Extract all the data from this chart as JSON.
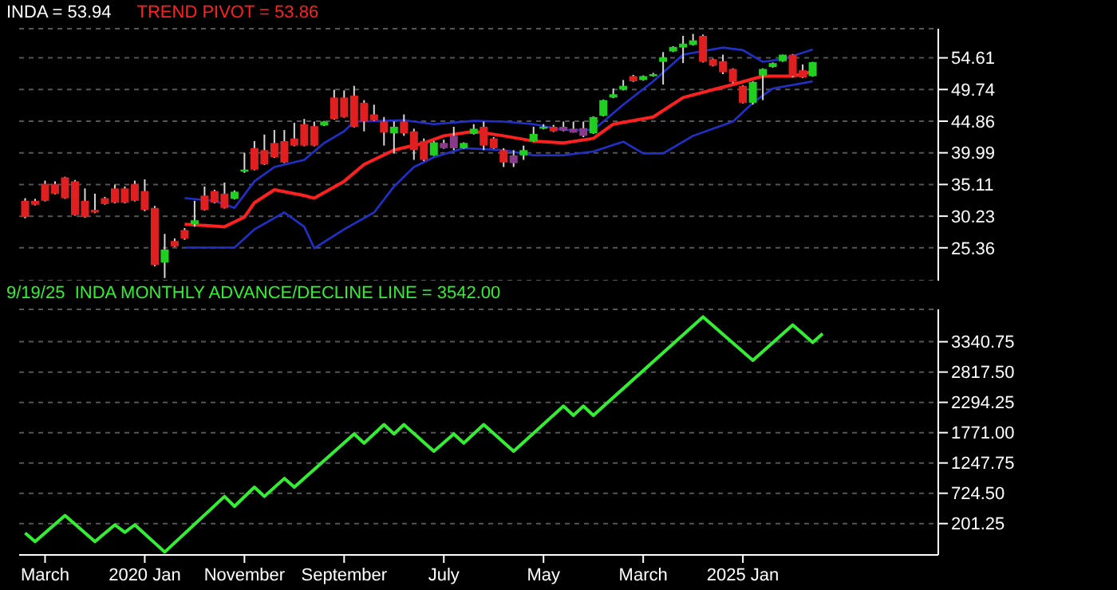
{
  "chart_data": [
    {
      "type": "candlestick",
      "legend": "top left",
      "grid": "y",
      "tick_labels": "y",
      "annotations": [
        "INDA = 53.94"
      ],
      "x": [
        "2019-01",
        "2019-02",
        "2019-03",
        "2019-04",
        "2019-05",
        "2019-06",
        "2019-07",
        "2019-08",
        "2019-09",
        "2019-10",
        "2019-11",
        "2019-12",
        "2020-01",
        "2020-02",
        "2020-03",
        "2020-04",
        "2020-05",
        "2020-06",
        "2020-07",
        "2020-08",
        "2020-09",
        "2020-10",
        "2020-11",
        "2020-12",
        "2021-01",
        "2021-02",
        "2021-03",
        "2021-04",
        "2021-05",
        "2021-06",
        "2021-07",
        "2021-08",
        "2021-09",
        "2021-10",
        "2021-11",
        "2021-12",
        "2022-01",
        "2022-02",
        "2022-03",
        "2022-04",
        "2022-05",
        "2022-06",
        "2022-07",
        "2022-08",
        "2022-09",
        "2022-10",
        "2022-11",
        "2022-12",
        "2023-01",
        "2023-02",
        "2023-03",
        "2023-04",
        "2023-05",
        "2023-06",
        "2023-07",
        "2023-08",
        "2023-09",
        "2023-10",
        "2023-11",
        "2023-12",
        "2024-01",
        "2024-02",
        "2024-03",
        "2024-04",
        "2024-05",
        "2024-06",
        "2024-07",
        "2024-08",
        "2024-09",
        "2024-10",
        "2024-11",
        "2024-12",
        "2025-01",
        "2025-02",
        "2025-03",
        "2025-04",
        "2025-05",
        "2025-06",
        "2025-07",
        "2025-08"
      ],
      "ohlc": [
        [
          32.6,
          33.0,
          29.9,
          30.1
        ],
        [
          32.6,
          32.9,
          31.9,
          32.0
        ],
        [
          35.2,
          35.7,
          32.5,
          32.6
        ],
        [
          35.2,
          35.6,
          33.6,
          33.7
        ],
        [
          36.2,
          36.3,
          32.9,
          33.0
        ],
        [
          35.6,
          35.8,
          30.3,
          30.4
        ],
        [
          32.6,
          34.5,
          30.0,
          30.1
        ],
        [
          31.2,
          33.7,
          30.7,
          30.8
        ],
        [
          33.0,
          33.2,
          32.0,
          32.1
        ],
        [
          34.5,
          35.1,
          32.2,
          32.3
        ],
        [
          34.5,
          34.8,
          32.2,
          32.3
        ],
        [
          35.2,
          35.7,
          32.5,
          32.6
        ],
        [
          34.1,
          35.9,
          31.0,
          31.2
        ],
        [
          31.5,
          31.8,
          22.5,
          22.7
        ],
        [
          23.1,
          27.5,
          20.7,
          25.1
        ],
        [
          26.4,
          26.8,
          25.5,
          25.6
        ],
        [
          28.1,
          28.4,
          26.6,
          26.8
        ],
        [
          29.0,
          32.6,
          28.6,
          29.6
        ],
        [
          33.4,
          34.8,
          31.1,
          31.2
        ],
        [
          34.1,
          34.3,
          32.2,
          32.3
        ],
        [
          33.7,
          35.4,
          31.4,
          31.5
        ],
        [
          32.9,
          34.2,
          32.8,
          34.0
        ],
        [
          37.1,
          40.0,
          36.9,
          37.4
        ],
        [
          40.7,
          41.8,
          37.3,
          37.4
        ],
        [
          40.4,
          42.8,
          38.1,
          38.2
        ],
        [
          41.5,
          43.5,
          39.2,
          39.3
        ],
        [
          41.8,
          43.5,
          38.4,
          38.5
        ],
        [
          42.2,
          44.6,
          41.0,
          41.1
        ],
        [
          44.4,
          45.2,
          41.0,
          41.1
        ],
        [
          44.1,
          44.8,
          41.0,
          41.1
        ],
        [
          44.2,
          44.9,
          44.1,
          44.8
        ],
        [
          48.5,
          49.7,
          45.1,
          45.2
        ],
        [
          48.5,
          49.6,
          45.4,
          45.5
        ],
        [
          48.8,
          50.3,
          43.9,
          44.0
        ],
        [
          47.7,
          48.1,
          43.3,
          44.8
        ],
        [
          45.9,
          47.4,
          44.9,
          45.0
        ],
        [
          44.8,
          45.5,
          41.1,
          43.1
        ],
        [
          43.0,
          44.8,
          39.9,
          44.0
        ],
        [
          44.8,
          45.9,
          42.6,
          43.0
        ],
        [
          43.3,
          43.7,
          38.9,
          40.4
        ],
        [
          41.8,
          42.2,
          38.7,
          38.9
        ],
        [
          39.6,
          41.8,
          39.5,
          41.6
        ],
        [
          41.5,
          42.0,
          40.6,
          40.7
        ],
        [
          42.6,
          44.0,
          40.4,
          40.7
        ],
        [
          40.7,
          41.6,
          40.6,
          41.5
        ],
        [
          42.9,
          44.4,
          42.8,
          43.7
        ],
        [
          44.0,
          44.8,
          40.4,
          41.1
        ],
        [
          42.2,
          42.4,
          40.6,
          40.7
        ],
        [
          40.4,
          40.7,
          37.8,
          38.5
        ],
        [
          39.6,
          40.4,
          37.8,
          38.4
        ],
        [
          39.6,
          41.1,
          38.9,
          40.4
        ],
        [
          41.8,
          44.0,
          41.7,
          42.9
        ],
        [
          43.7,
          44.4,
          43.6,
          44.0
        ],
        [
          44.0,
          44.3,
          43.2,
          43.3
        ],
        [
          44.0,
          44.8,
          43.3,
          43.4
        ],
        [
          43.7,
          44.8,
          43.1,
          43.1
        ],
        [
          43.8,
          44.8,
          42.4,
          42.6
        ],
        [
          43.0,
          45.6,
          42.9,
          45.5
        ],
        [
          45.7,
          48.2,
          45.6,
          48.1
        ],
        [
          48.5,
          49.9,
          48.4,
          49.0
        ],
        [
          49.7,
          51.2,
          49.6,
          50.3
        ],
        [
          51.8,
          52.0,
          50.9,
          51.0
        ],
        [
          51.2,
          51.9,
          51.1,
          51.8
        ],
        [
          51.8,
          52.3,
          51.7,
          52.1
        ],
        [
          54.0,
          55.5,
          50.5,
          54.7
        ],
        [
          55.6,
          56.4,
          55.5,
          56.3
        ],
        [
          56.2,
          58.0,
          53.8,
          56.8
        ],
        [
          56.6,
          58.3,
          56.5,
          57.3
        ],
        [
          58.0,
          58.2,
          53.9,
          54.0
        ],
        [
          54.4,
          54.5,
          53.3,
          53.4
        ],
        [
          54.1,
          55.1,
          52.1,
          52.4
        ],
        [
          52.9,
          53.0,
          50.7,
          50.9
        ],
        [
          50.3,
          50.4,
          47.6,
          47.7
        ],
        [
          47.7,
          51.0,
          47.4,
          50.9
        ],
        [
          51.9,
          53.0,
          48.1,
          52.9
        ],
        [
          53.2,
          53.9,
          53.1,
          53.8
        ],
        [
          54.1,
          55.1,
          54.0,
          55.1
        ],
        [
          55.1,
          55.2,
          51.6,
          51.8
        ],
        [
          52.7,
          53.6,
          51.5,
          51.6
        ],
        [
          51.8,
          54.0,
          51.7,
          53.94
        ]
      ],
      "colors": [
        "#e02020",
        "#e02020",
        "#e02020",
        "#e02020",
        "#e02020",
        "#e02020",
        "#e02020",
        "#e02020",
        "#e02020",
        "#e02020",
        "#e02020",
        "#e02020",
        "#e02020",
        "#e02020",
        "#20d020",
        "#e02020",
        "#e02020",
        "#20d020",
        "#e02020",
        "#e02020",
        "#e02020",
        "#20d020",
        "#20d020",
        "#e02020",
        "#e02020",
        "#e02020",
        "#e02020",
        "#e02020",
        "#e02020",
        "#e02020",
        "#20d020",
        "#e02020",
        "#e02020",
        "#e02020",
        "#e02020",
        "#e02020",
        "#e02020",
        "#20d020",
        "#e02020",
        "#e02020",
        "#e02020",
        "#20d020",
        "#8a3a8a",
        "#8a3a8a",
        "#20d020",
        "#20d020",
        "#e02020",
        "#e02020",
        "#e02020",
        "#8a3a8a",
        "#20d020",
        "#20d020",
        "#20d020",
        "#e02020",
        "#8a3a8a",
        "#8a3a8a",
        "#8a3a8a",
        "#20d020",
        "#20d020",
        "#20d020",
        "#20d020",
        "#e02020",
        "#20d020",
        "#20d020",
        "#20d020",
        "#20d020",
        "#20d020",
        "#20d020",
        "#e02020",
        "#e02020",
        "#e02020",
        "#e02020",
        "#e02020",
        "#20d020",
        "#20d020",
        "#20d020",
        "#20d020",
        "#e02020",
        "#e02020",
        "#20d020"
      ],
      "series": [
        {
          "type": "line",
          "name": "TREND PIVOT = 53.86",
          "color": "#ff2020",
          "x": [
            "2020-05",
            "2020-09",
            "2020-11",
            "2020-12",
            "2021-02",
            "2021-05",
            "2021-06",
            "2021-09",
            "2021-11",
            "2022-02",
            "2022-05",
            "2022-07",
            "2022-10",
            "2023-01",
            "2023-04",
            "2023-07",
            "2023-10",
            "2023-12",
            "2024-04",
            "2024-07",
            "2024-10",
            "2024-12",
            "2025-03",
            "2025-06",
            "2025-08"
          ],
          "values": [
            29.0,
            28.6,
            30.1,
            32.3,
            34.3,
            33.4,
            33.0,
            35.6,
            38.2,
            40.4,
            41.5,
            42.6,
            43.3,
            42.6,
            41.8,
            41.5,
            42.2,
            44.4,
            45.5,
            48.5,
            49.7,
            50.5,
            51.8,
            51.8,
            52.5
          ]
        },
        {
          "type": "line",
          "color": "#2030c8",
          "x": [
            "2020-05",
            "2020-08",
            "2020-10",
            "2020-12",
            "2021-02",
            "2021-05",
            "2021-07",
            "2021-09",
            "2021-10",
            "2022-03",
            "2022-06",
            "2022-10",
            "2023-01",
            "2023-04",
            "2023-07",
            "2023-10",
            "2024-01",
            "2024-04",
            "2024-07",
            "2024-11",
            "2025-01",
            "2025-03",
            "2025-05",
            "2025-08"
          ],
          "values": [
            33.0,
            32.6,
            31.5,
            35.6,
            37.8,
            38.9,
            41.5,
            43.3,
            44.8,
            45.0,
            44.4,
            44.9,
            44.8,
            44.4,
            43.5,
            43.5,
            47.4,
            51.0,
            55.1,
            56.2,
            55.8,
            54.0,
            54.4,
            55.9
          ]
        },
        {
          "type": "line",
          "color": "#2030c8",
          "x": [
            "2020-05",
            "2020-10",
            "2020-12",
            "2021-03",
            "2021-05",
            "2021-06",
            "2021-09",
            "2021-12",
            "2022-02",
            "2022-04",
            "2022-06",
            "2022-09",
            "2023-01",
            "2023-04",
            "2023-07",
            "2023-10",
            "2024-01",
            "2024-03",
            "2024-05",
            "2024-08",
            "2024-12",
            "2025-02",
            "2025-04",
            "2025-08"
          ],
          "values": [
            25.4,
            25.4,
            28.2,
            30.8,
            28.6,
            25.3,
            28.2,
            30.8,
            34.8,
            37.8,
            39.3,
            40.7,
            40.4,
            39.6,
            39.6,
            40.2,
            41.7,
            39.9,
            39.9,
            42.6,
            44.8,
            47.7,
            49.9,
            51.0
          ]
        }
      ],
      "xlim": [
        "2018-12-13",
        "2026-08-19"
      ],
      "ylim": [
        20.3,
        59.1
      ],
      "yticks": [
        25.36,
        30.23,
        35.11,
        39.99,
        44.86,
        49.74,
        54.61
      ]
    },
    {
      "type": "line",
      "legend": "top left",
      "grid": "y",
      "series": [
        {
          "name": "9/19/25  INDA MONTHLY ADVANCE/DECLINE LINE = 3542.00",
          "color": "#33ee33",
          "x": [
            "2019-01",
            "2019-02",
            "2019-05",
            "2019-08",
            "2019-10",
            "2019-11",
            "2019-12",
            "2020-03",
            "2020-09",
            "2020-10",
            "2020-12",
            "2021-01",
            "2021-03",
            "2021-04",
            "2021-10",
            "2021-11",
            "2022-01",
            "2022-02",
            "2022-03",
            "2022-06",
            "2022-08",
            "2022-09",
            "2022-11",
            "2023-02",
            "2023-07",
            "2023-08",
            "2023-09",
            "2023-10",
            "2024-09",
            "2025-02",
            "2025-06",
            "2025-08",
            "2025-09"
          ],
          "values": [
            40,
            -110,
            340,
            -110,
            180,
            50,
            180,
            -290,
            670,
            500,
            830,
            670,
            980,
            830,
            1750,
            1590,
            1910,
            1750,
            1910,
            1450,
            1750,
            1590,
            1910,
            1450,
            2230,
            2070,
            2230,
            2070,
            3770,
            3020,
            3630,
            3330,
            3480
          ]
        }
      ],
      "xlim": [
        "2018-12-13",
        "2026-08-19"
      ],
      "xticks": [
        {
          "value": "2019-03",
          "label": "March"
        },
        {
          "value": "2020-01",
          "label": "2020 Jan"
        },
        {
          "value": "2020-11",
          "label": "November"
        },
        {
          "value": "2021-09",
          "label": "September"
        },
        {
          "value": "2022-07",
          "label": "July"
        },
        {
          "value": "2023-05",
          "label": "May"
        },
        {
          "value": "2024-03",
          "label": "March"
        },
        {
          "value": "2025-01",
          "label": "2025 Jan"
        }
      ],
      "ylim": [
        -340,
        3900
      ],
      "yticks": [
        201.25,
        {
          "value": 724.5,
          "label": "724.50"
        },
        1247.75,
        {
          "value": 1771,
          "label": "1771.00"
        },
        2294.25,
        {
          "value": 2817.5,
          "label": "2817.50"
        },
        3340.75
      ]
    }
  ]
}
